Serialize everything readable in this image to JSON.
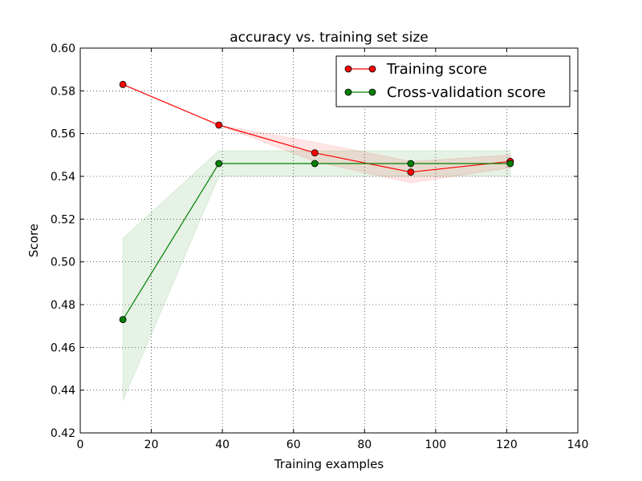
{
  "chart_data": {
    "type": "line",
    "title": "accuracy vs. training set size",
    "xlabel": "Training examples",
    "ylabel": "Score",
    "xlim": [
      0,
      140
    ],
    "ylim": [
      0.42,
      0.6
    ],
    "xticks": [
      0,
      20,
      40,
      60,
      80,
      100,
      120,
      140
    ],
    "yticks": [
      0.42,
      0.44,
      0.46,
      0.48,
      0.5,
      0.52,
      0.54,
      0.56,
      0.58,
      0.6
    ],
    "xtick_labels": [
      "0",
      "20",
      "40",
      "60",
      "80",
      "100",
      "120",
      "140"
    ],
    "ytick_labels": [
      "0.42",
      "0.44",
      "0.46",
      "0.48",
      "0.50",
      "0.52",
      "0.54",
      "0.56",
      "0.58",
      "0.60"
    ],
    "grid": true,
    "legend_position": "top-right",
    "x": [
      12,
      39,
      66,
      93,
      121
    ],
    "series": [
      {
        "name": "Training score",
        "color": "#ff0000",
        "values": [
          0.583,
          0.564,
          0.551,
          0.542,
          0.547
        ],
        "band_lower": [
          0.583,
          0.564,
          0.547,
          0.537,
          0.544
        ],
        "band_upper": [
          0.583,
          0.564,
          0.556,
          0.547,
          0.55
        ]
      },
      {
        "name": "Cross-validation score",
        "color": "#008000",
        "values": [
          0.473,
          0.546,
          0.546,
          0.546,
          0.546
        ],
        "band_lower": [
          0.435,
          0.54,
          0.54,
          0.54,
          0.54
        ],
        "band_upper": [
          0.511,
          0.552,
          0.552,
          0.552,
          0.552
        ]
      }
    ]
  }
}
